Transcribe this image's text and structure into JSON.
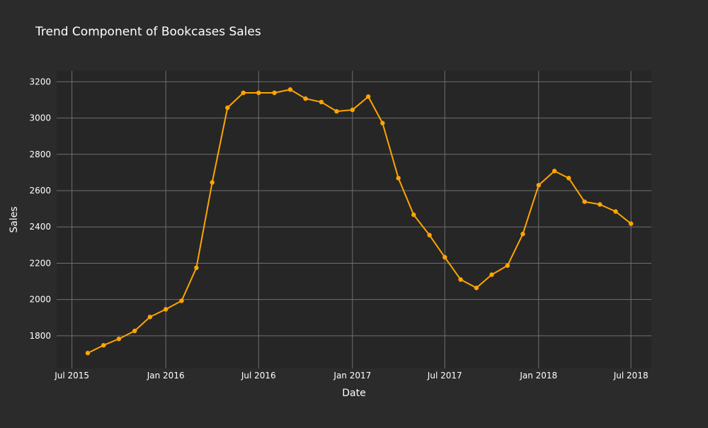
{
  "chart_data": {
    "type": "line",
    "title": "Trend Component of Bookcases Sales",
    "xlabel": "Date",
    "ylabel": "Sales",
    "x_axis": {
      "range": [
        "2015-06-01",
        "2018-08-10"
      ],
      "ticks": [
        {
          "date": "2015-07-01",
          "label": "Jul 2015"
        },
        {
          "date": "2016-01-01",
          "label": "Jan 2016"
        },
        {
          "date": "2016-07-01",
          "label": "Jul 2016"
        },
        {
          "date": "2017-01-01",
          "label": "Jan 2017"
        },
        {
          "date": "2017-07-01",
          "label": "Jul 2017"
        },
        {
          "date": "2018-01-01",
          "label": "Jan 2018"
        },
        {
          "date": "2018-07-01",
          "label": "Jul 2018"
        }
      ]
    },
    "y_axis": {
      "range": [
        1620,
        3260
      ],
      "ticks": [
        1800,
        2000,
        2200,
        2400,
        2600,
        2800,
        3000,
        3200
      ]
    },
    "grid": true,
    "legend": false,
    "colors": {
      "background": "#2b2b2b",
      "plot_background": "#262626",
      "grid": "#6f6f6f",
      "series": "#FFA500"
    },
    "series": [
      {
        "points": [
          {
            "date": "2015-08-01",
            "value": 1705
          },
          {
            "date": "2015-09-01",
            "value": 1748
          },
          {
            "date": "2015-10-01",
            "value": 1783
          },
          {
            "date": "2015-11-01",
            "value": 1827
          },
          {
            "date": "2015-12-01",
            "value": 1904
          },
          {
            "date": "2016-01-01",
            "value": 1946
          },
          {
            "date": "2016-02-01",
            "value": 1993
          },
          {
            "date": "2016-03-01",
            "value": 2175
          },
          {
            "date": "2016-04-01",
            "value": 2645
          },
          {
            "date": "2016-05-01",
            "value": 3057
          },
          {
            "date": "2016-06-01",
            "value": 3139
          },
          {
            "date": "2016-07-01",
            "value": 3139
          },
          {
            "date": "2016-08-01",
            "value": 3139
          },
          {
            "date": "2016-09-01",
            "value": 3157
          },
          {
            "date": "2016-10-01",
            "value": 3107
          },
          {
            "date": "2016-11-01",
            "value": 3088
          },
          {
            "date": "2016-12-01",
            "value": 3037
          },
          {
            "date": "2017-01-01",
            "value": 3045
          },
          {
            "date": "2017-02-01",
            "value": 3118
          },
          {
            "date": "2017-03-01",
            "value": 2972
          },
          {
            "date": "2017-04-01",
            "value": 2669
          },
          {
            "date": "2017-05-01",
            "value": 2467
          },
          {
            "date": "2017-06-01",
            "value": 2355
          },
          {
            "date": "2017-07-01",
            "value": 2233
          },
          {
            "date": "2017-08-01",
            "value": 2110
          },
          {
            "date": "2017-09-01",
            "value": 2064
          },
          {
            "date": "2017-10-01",
            "value": 2137
          },
          {
            "date": "2017-11-01",
            "value": 2187
          },
          {
            "date": "2017-12-01",
            "value": 2361
          },
          {
            "date": "2018-01-01",
            "value": 2630
          },
          {
            "date": "2018-02-01",
            "value": 2708
          },
          {
            "date": "2018-03-01",
            "value": 2669
          },
          {
            "date": "2018-04-01",
            "value": 2539
          },
          {
            "date": "2018-05-01",
            "value": 2524
          },
          {
            "date": "2018-06-01",
            "value": 2485
          },
          {
            "date": "2018-07-01",
            "value": 2418
          }
        ]
      }
    ]
  }
}
